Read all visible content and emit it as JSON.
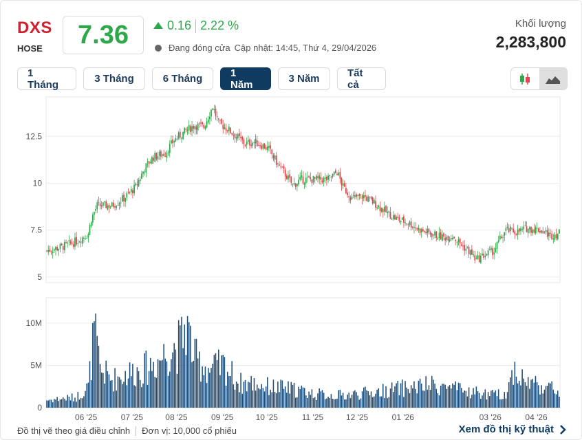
{
  "header": {
    "ticker": "DXS",
    "exchange": "HOSE",
    "price": "7.36",
    "change": "0.16",
    "change_pct": "2.22 %",
    "status": "Đang đóng cửa",
    "updated": "Cập nhật: 14:45, Thứ 4, 29/04/2026",
    "volume_label": "Khối lượng",
    "volume_value": "2,283,800"
  },
  "tabs": [
    {
      "label": "1 Tháng",
      "active": false
    },
    {
      "label": "3 Tháng",
      "active": false
    },
    {
      "label": "6 Tháng",
      "active": false
    },
    {
      "label": "1 Năm",
      "active": true
    },
    {
      "label": "3 Năm",
      "active": false
    },
    {
      "label": "Tất cả",
      "active": false
    }
  ],
  "chart_modes": [
    {
      "icon": "candlestick-icon",
      "active": false
    },
    {
      "icon": "area-chart-icon",
      "active": true
    }
  ],
  "colors": {
    "up": "#2ea84a",
    "down": "#e0464f",
    "volume": "#1f4e79",
    "accent": "#0f3b61",
    "brand": "#d0202e"
  },
  "chart_data": {
    "type": "candlestick",
    "price_axis": {
      "ticks": [
        "5",
        "7.5",
        "10",
        "12.5"
      ],
      "tick_values": [
        5,
        7.5,
        10,
        12.5
      ],
      "ylim": [
        4.7,
        14.6
      ]
    },
    "volume_axis": {
      "ticks": [
        "0",
        "5M",
        "10M"
      ],
      "tick_values": [
        0,
        5,
        10
      ],
      "unit": "M",
      "ylim": [
        0,
        13
      ]
    },
    "x_ticks": [
      "06 '25",
      "07 '25",
      "08 '25",
      "09 '25",
      "10 '25",
      "11 '25",
      "12 '25",
      "01 '26",
      "03 '26",
      "04 '26"
    ],
    "x_tick_days": [
      27,
      58,
      88,
      119,
      149,
      180,
      210,
      241,
      300,
      331
    ],
    "start": "2025-05-04",
    "close_path": [
      [
        0,
        6.4
      ],
      [
        10,
        6.6
      ],
      [
        20,
        6.9
      ],
      [
        28,
        7.3
      ],
      [
        30,
        8.1
      ],
      [
        34,
        8.8
      ],
      [
        44,
        8.8
      ],
      [
        52,
        9.2
      ],
      [
        60,
        9.8
      ],
      [
        66,
        10.8
      ],
      [
        72,
        11.4
      ],
      [
        80,
        11.6
      ],
      [
        86,
        12.3
      ],
      [
        94,
        12.8
      ],
      [
        100,
        13.1
      ],
      [
        106,
        13.0
      ],
      [
        112,
        14.1
      ],
      [
        116,
        13.2
      ],
      [
        122,
        12.9
      ],
      [
        128,
        12.5
      ],
      [
        134,
        12.1
      ],
      [
        140,
        12.2
      ],
      [
        146,
        12.0
      ],
      [
        150,
        11.8
      ],
      [
        156,
        11.0
      ],
      [
        160,
        10.6
      ],
      [
        166,
        9.9
      ],
      [
        172,
        10.2
      ],
      [
        180,
        10.2
      ],
      [
        190,
        10.2
      ],
      [
        196,
        10.6
      ],
      [
        200,
        9.8
      ],
      [
        206,
        9.2
      ],
      [
        214,
        9.3
      ],
      [
        222,
        8.9
      ],
      [
        230,
        8.4
      ],
      [
        236,
        8.1
      ],
      [
        244,
        7.9
      ],
      [
        252,
        7.5
      ],
      [
        260,
        7.3
      ],
      [
        268,
        7.1
      ],
      [
        274,
        7.2
      ],
      [
        280,
        6.7
      ],
      [
        286,
        6.3
      ],
      [
        290,
        5.9
      ],
      [
        296,
        6.2
      ],
      [
        302,
        6.4
      ],
      [
        306,
        7.0
      ],
      [
        310,
        7.5
      ],
      [
        318,
        7.4
      ],
      [
        324,
        7.6
      ],
      [
        334,
        7.5
      ],
      [
        340,
        7.2
      ],
      [
        347,
        7.36
      ]
    ],
    "volume_path": [
      [
        0,
        1.1
      ],
      [
        20,
        1.5
      ],
      [
        28,
        3.0
      ],
      [
        32,
        10.8
      ],
      [
        36,
        5.5
      ],
      [
        44,
        4.0
      ],
      [
        56,
        5.0
      ],
      [
        66,
        5.5
      ],
      [
        76,
        7.0
      ],
      [
        84,
        8.5
      ],
      [
        90,
        9.0
      ],
      [
        94,
        12.0
      ],
      [
        100,
        7.0
      ],
      [
        110,
        5.5
      ],
      [
        120,
        6.0
      ],
      [
        130,
        3.5
      ],
      [
        140,
        3.5
      ],
      [
        150,
        3.0
      ],
      [
        160,
        2.8
      ],
      [
        170,
        2.5
      ],
      [
        180,
        2.0
      ],
      [
        190,
        1.8
      ],
      [
        200,
        1.8
      ],
      [
        210,
        2.0
      ],
      [
        220,
        2.2
      ],
      [
        230,
        2.5
      ],
      [
        240,
        2.8
      ],
      [
        250,
        3.0
      ],
      [
        260,
        3.2
      ],
      [
        270,
        3.0
      ],
      [
        280,
        2.4
      ],
      [
        290,
        2.2
      ],
      [
        300,
        1.8
      ],
      [
        310,
        2.0
      ],
      [
        316,
        5.8
      ],
      [
        322,
        3.8
      ],
      [
        330,
        3.5
      ],
      [
        340,
        2.8
      ],
      [
        347,
        2.3
      ]
    ],
    "trading_days": 347
  },
  "footer": {
    "note": "Đồ thị vẽ theo giá điều chỉnh",
    "unit": "Đơn vị: 10,000 cổ phiếu",
    "tech_link": "Xem đồ thị kỹ thuật"
  }
}
